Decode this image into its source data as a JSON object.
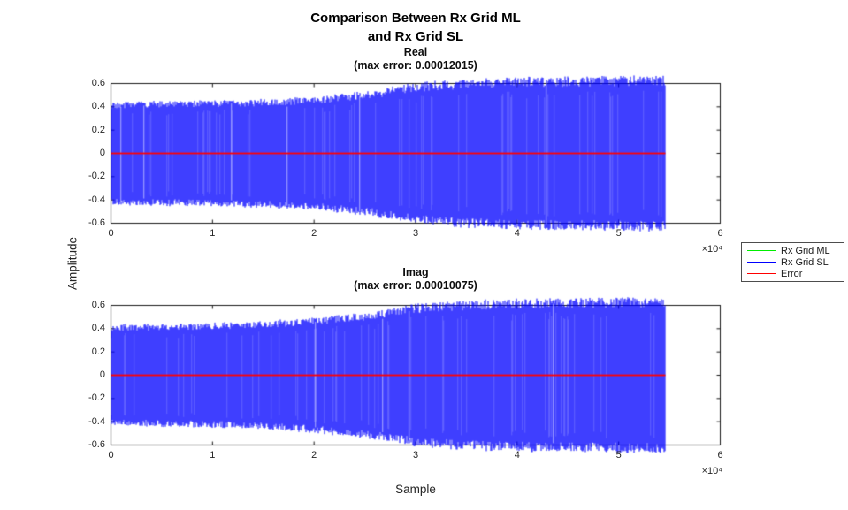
{
  "figure": {
    "title_line1": "Comparison Between Rx Grid ML",
    "title_line2": "and Rx Grid SL",
    "xlabel": "Sample",
    "ylabel": "Amplitude",
    "x_multiplier": "×10⁴",
    "background": "#ffffff",
    "axis_color": "#262626",
    "box_color": "#1a1a1a"
  },
  "legend": {
    "items": [
      {
        "label": "Rx Grid ML",
        "color": "#00ee00"
      },
      {
        "label": "Rx Grid SL",
        "color": "#0000ff"
      },
      {
        "label": "Error",
        "color": "#ff0000"
      }
    ]
  },
  "chart_data": [
    {
      "type": "line",
      "title": "Real",
      "subtitle": "(max error: 0.00012015)",
      "max_error": 0.00012015,
      "xlabel": "Sample",
      "ylabel": "Amplitude",
      "xlim": [
        0,
        60000
      ],
      "ylim": [
        -0.6,
        0.6
      ],
      "xticks": [
        "0",
        "1",
        "2",
        "3",
        "4",
        "5",
        "6"
      ],
      "xtick_scale": 10000,
      "yticks": [
        "0.6",
        "0.4",
        "0.2",
        "0",
        "-0.2",
        "-0.4",
        "-0.6"
      ],
      "grid": false,
      "legend_position": "outside-right",
      "data_end_x": 54600,
      "series": [
        {
          "name": "Rx Grid ML",
          "color": "#00ee00",
          "note": "identical to Rx Grid SL, hidden beneath it"
        },
        {
          "name": "Rx Grid SL",
          "color": "#0000ff",
          "waveform": "dense oscillation symmetric about 0",
          "envelope_x": [
            0,
            10000,
            15000,
            20000,
            25000,
            30000,
            35000,
            40000,
            45000,
            50000,
            54600
          ],
          "envelope_amp": [
            0.44,
            0.45,
            0.46,
            0.48,
            0.525,
            0.6,
            0.63,
            0.645,
            0.65,
            0.655,
            0.66
          ]
        },
        {
          "name": "Error",
          "color": "#ff0000",
          "value": 0
        }
      ]
    },
    {
      "type": "line",
      "title": "Imag",
      "subtitle": "(max error: 0.00010075)",
      "max_error": 0.00010075,
      "xlabel": "Sample",
      "ylabel": "Amplitude",
      "xlim": [
        0,
        60000
      ],
      "ylim": [
        -0.6,
        0.6
      ],
      "xticks": [
        "0",
        "1",
        "2",
        "3",
        "4",
        "5",
        "6"
      ],
      "xtick_scale": 10000,
      "yticks": [
        "0.6",
        "0.4",
        "0.2",
        "0",
        "-0.2",
        "-0.4",
        "-0.6"
      ],
      "grid": false,
      "legend_position": "outside-right",
      "data_end_x": 54600,
      "series": [
        {
          "name": "Rx Grid ML",
          "color": "#00ee00",
          "note": "identical to Rx Grid SL, hidden beneath it"
        },
        {
          "name": "Rx Grid SL",
          "color": "#0000ff",
          "waveform": "dense oscillation symmetric about 0",
          "envelope_x": [
            0,
            10000,
            15000,
            20000,
            25000,
            30000,
            35000,
            40000,
            45000,
            50000,
            54600
          ],
          "envelope_amp": [
            0.43,
            0.445,
            0.46,
            0.49,
            0.535,
            0.605,
            0.635,
            0.648,
            0.652,
            0.657,
            0.662
          ]
        },
        {
          "name": "Error",
          "color": "#ff0000",
          "value": 0
        }
      ]
    }
  ]
}
